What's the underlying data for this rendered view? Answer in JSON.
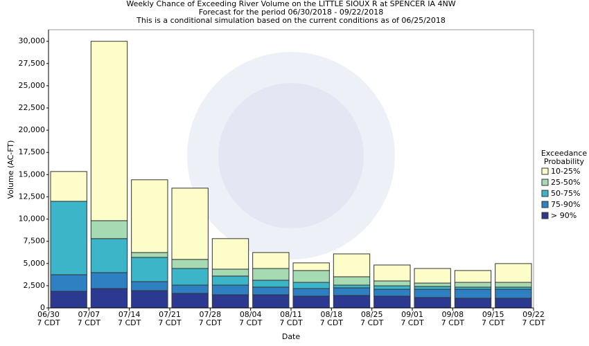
{
  "chart_data": {
    "type": "stacked_bar",
    "title": [
      "Weekly Chance of Exceeding River Volume on the LITTLE SIOUX R at SPENCER IA 4NW",
      "Forecast for the period 06/30/2018 - 09/22/2018",
      "This is a conditional simulation based on the current conditions as of 06/25/2018"
    ],
    "x_label": "Date",
    "y_label": "Volume (AC-FT)",
    "x_tick_labels": [
      [
        "06/30",
        "7 CDT"
      ],
      [
        "07/07",
        "7 CDT"
      ],
      [
        "07/14",
        "7 CDT"
      ],
      [
        "07/21",
        "7 CDT"
      ],
      [
        "07/28",
        "7 CDT"
      ],
      [
        "08/04",
        "7 CDT"
      ],
      [
        "08/11",
        "7 CDT"
      ],
      [
        "08/18",
        "7 CDT"
      ],
      [
        "08/25",
        "7 CDT"
      ],
      [
        "09/01",
        "7 CDT"
      ],
      [
        "09/08",
        "7 CDT"
      ],
      [
        "09/15",
        "7 CDT"
      ],
      [
        "09/22",
        "7 CDT"
      ]
    ],
    "ylim": [
      0,
      31300
    ],
    "yticks": [
      0,
      {
        "value": 2500,
        "label": "2,500"
      },
      {
        "value": 5000,
        "label": "5,000"
      },
      {
        "value": 7500,
        "label": "7,500"
      },
      {
        "value": 10000,
        "label": "10,000"
      },
      {
        "value": 12500,
        "label": "12,500"
      },
      {
        "value": 15000,
        "label": "15,000"
      },
      {
        "value": 17500,
        "label": "17,500"
      },
      {
        "value": 20000,
        "label": "20,000"
      },
      {
        "value": 22500,
        "label": "22,500"
      },
      {
        "value": 25000,
        "label": "25,000"
      },
      {
        "value": 27500,
        "label": "27,500"
      },
      {
        "value": 30000,
        "label": "30,000"
      }
    ],
    "grid": false,
    "legend_title": [
      "Exceedance",
      "Probability"
    ],
    "series": [
      {
        "name": "> 90%",
        "color": "#2b3990",
        "values": [
          1870,
          2180,
          1950,
          1640,
          1480,
          1480,
          1325,
          1400,
          1325,
          1170,
          1090,
          1090
        ]
      },
      {
        "name": "75-90%",
        "color": "#2e80c3",
        "values": [
          1870,
          1795,
          1010,
          930,
          1090,
          860,
          855,
          860,
          775,
          930,
          1010,
          1010
        ]
      },
      {
        "name": "50-75%",
        "color": "#3db5c8",
        "values": [
          8260,
          3825,
          2730,
          1870,
          1020,
          780,
          700,
          310,
          390,
          320,
          240,
          240
        ]
      },
      {
        "name": "25-50%",
        "color": "#a5dab3",
        "values": [
          0,
          2020,
          545,
          1020,
          775,
          1320,
          1330,
          940,
          550,
          380,
          540,
          540
        ]
      },
      {
        "name": "10-25%",
        "color": "#fdfdca",
        "values": [
          3350,
          20180,
          8185,
          8020,
          3435,
          1795,
          860,
          2570,
          1790,
          1640,
          1330,
          2110
        ]
      }
    ]
  }
}
